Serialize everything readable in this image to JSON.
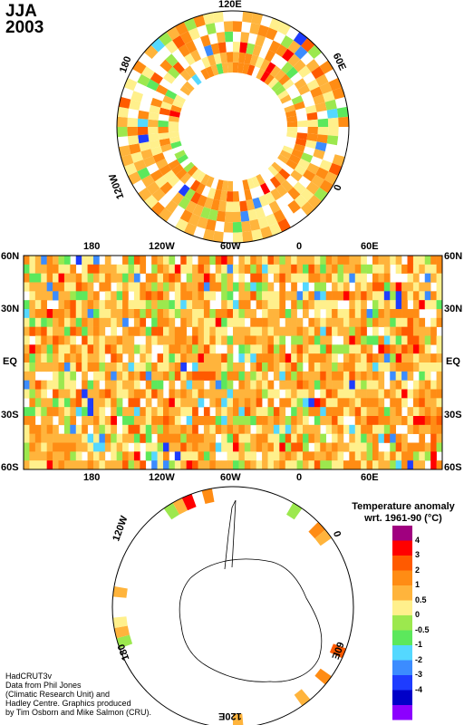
{
  "title": {
    "line1": "JJA",
    "line2": "2003"
  },
  "north_polar": {
    "labels": {
      "top": "120E",
      "left": "180",
      "right": "60E",
      "bottom_left": "120W",
      "bottom_right": "0"
    }
  },
  "equirect": {
    "top_lon_labels": [
      "180",
      "120W",
      "60W",
      "0",
      "60E"
    ],
    "bottom_lon_labels": [
      "180",
      "120W",
      "60W",
      "0",
      "60E"
    ],
    "lat_labels": [
      "60N",
      "30N",
      "EQ",
      "30S",
      "60S"
    ]
  },
  "south_polar": {
    "labels": {
      "left_top": "120W",
      "right_top": "0",
      "left_bottom": "180",
      "right_bottom": "60E",
      "bottom": "120E"
    }
  },
  "legend": {
    "title_line1": "Temperature anomaly",
    "title_line2": "wrt. 1961-90  (°C)",
    "ticks": [
      "4",
      "3",
      "2",
      "1",
      "0.5",
      "0",
      "-0.5",
      "-1",
      "-2",
      "-3",
      "-4"
    ],
    "colors": [
      "#a0007f",
      "#ff0000",
      "#ff5a00",
      "#ff8c14",
      "#ffb43c",
      "#fff08c",
      "#9ce84e",
      "#5ce85c",
      "#54d8ff",
      "#3c8cff",
      "#1e3cff",
      "#0000c8",
      "#8c00ff"
    ]
  },
  "credit": {
    "lines": [
      "HadCRUT3v",
      "Data from Phil Jones",
      "(Climatic Research Unit) and",
      "Hadley Centre.  Graphics produced",
      "by Tim Osborn and Mike Salmon (CRU)."
    ]
  }
}
